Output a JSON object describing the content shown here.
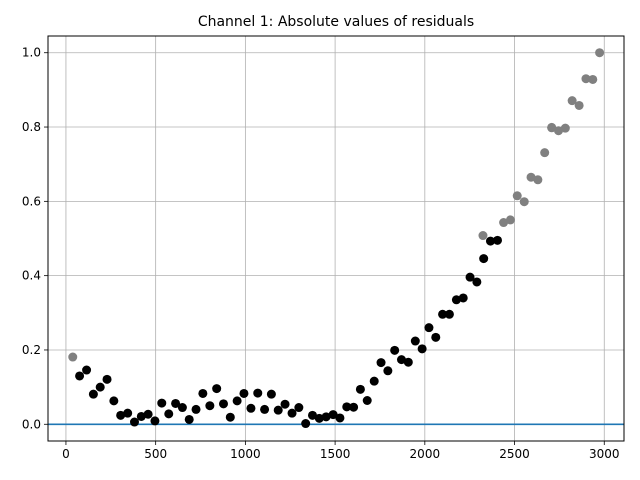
{
  "chart_data": {
    "type": "scatter",
    "title": "Channel 1: Absolute values of residuals",
    "xlabel": "",
    "ylabel": "",
    "xlim": [
      -100,
      3110
    ],
    "ylim": [
      -0.045,
      1.045
    ],
    "grid": true,
    "x_ticks": [
      {
        "value": 0,
        "label": "0"
      },
      {
        "value": 500,
        "label": "500"
      },
      {
        "value": 1000,
        "label": "1000"
      },
      {
        "value": 1500,
        "label": "1500"
      },
      {
        "value": 2000,
        "label": "2000"
      },
      {
        "value": 2500,
        "label": "2500"
      },
      {
        "value": 3000,
        "label": "3000"
      }
    ],
    "y_ticks": [
      {
        "value": 0.0,
        "label": "0.0"
      },
      {
        "value": 0.2,
        "label": "0.2"
      },
      {
        "value": 0.4,
        "label": "0.4"
      },
      {
        "value": 0.6,
        "label": "0.6"
      },
      {
        "value": 0.8,
        "label": "0.8"
      },
      {
        "value": 1.0,
        "label": "1.0"
      }
    ],
    "reference_line": {
      "y": 0.0,
      "color": "#1f77b4"
    },
    "series": [
      {
        "color": "#808080",
        "points": [
          [
            38,
            0.181
          ],
          [
            2324,
            0.508
          ],
          [
            2477,
            0.55
          ],
          [
            2554,
            0.599
          ],
          [
            2592,
            0.665
          ],
          [
            2515,
            0.615
          ],
          [
            2630,
            0.658
          ],
          [
            2668,
            0.731
          ],
          [
            2707,
            0.798
          ],
          [
            2707,
            0.799
          ],
          [
            2745,
            0.79
          ],
          [
            2783,
            0.797
          ],
          [
            2821,
            0.871
          ],
          [
            2860,
            0.858
          ],
          [
            2898,
            0.93
          ],
          [
            2936,
            0.928
          ],
          [
            2974,
            1.0
          ],
          [
            2439,
            0.543
          ]
        ]
      },
      {
        "color": "#000000",
        "points": [
          [
            76,
            0.13
          ],
          [
            115,
            0.146
          ],
          [
            153,
            0.081
          ],
          [
            191,
            0.1
          ],
          [
            229,
            0.121
          ],
          [
            267,
            0.063
          ],
          [
            305,
            0.024
          ],
          [
            344,
            0.03
          ],
          [
            382,
            0.006
          ],
          [
            420,
            0.021
          ],
          [
            458,
            0.027
          ],
          [
            496,
            0.009
          ],
          [
            534,
            0.057
          ],
          [
            573,
            0.028
          ],
          [
            611,
            0.056
          ],
          [
            649,
            0.045
          ],
          [
            687,
            0.013
          ],
          [
            725,
            0.04
          ],
          [
            763,
            0.083
          ],
          [
            802,
            0.05
          ],
          [
            840,
            0.096
          ],
          [
            878,
            0.055
          ],
          [
            916,
            0.019
          ],
          [
            954,
            0.063
          ],
          [
            992,
            0.083
          ],
          [
            1031,
            0.043
          ],
          [
            1069,
            0.084
          ],
          [
            1107,
            0.04
          ],
          [
            1145,
            0.081
          ],
          [
            1183,
            0.038
          ],
          [
            1221,
            0.054
          ],
          [
            1260,
            0.03
          ],
          [
            1298,
            0.045
          ],
          [
            1336,
            0.002
          ],
          [
            1374,
            0.024
          ],
          [
            1412,
            0.016
          ],
          [
            1450,
            0.02
          ],
          [
            1489,
            0.026
          ],
          [
            1527,
            0.017
          ],
          [
            1565,
            0.047
          ],
          [
            1603,
            0.046
          ],
          [
            1641,
            0.094
          ],
          [
            1679,
            0.064
          ],
          [
            1718,
            0.116
          ],
          [
            1756,
            0.166
          ],
          [
            1794,
            0.144
          ],
          [
            1832,
            0.199
          ],
          [
            1870,
            0.174
          ],
          [
            1908,
            0.167
          ],
          [
            1947,
            0.224
          ],
          [
            1985,
            0.203
          ],
          [
            2023,
            0.26
          ],
          [
            2061,
            0.234
          ],
          [
            2099,
            0.296
          ],
          [
            2137,
            0.296
          ],
          [
            2176,
            0.335
          ],
          [
            2214,
            0.34
          ],
          [
            2252,
            0.396
          ],
          [
            2290,
            0.383
          ],
          [
            2328,
            0.446
          ],
          [
            2366,
            0.493
          ],
          [
            2405,
            0.495
          ]
        ]
      }
    ]
  }
}
